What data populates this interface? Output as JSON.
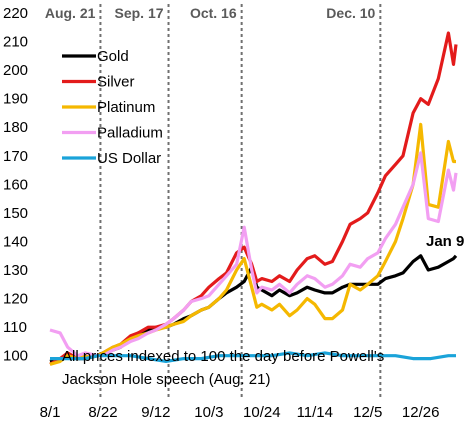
{
  "chart_data": {
    "type": "line",
    "title": "",
    "xlabel": "",
    "ylabel": "",
    "ylim": [
      95,
      220
    ],
    "y_ticks": [
      100,
      110,
      120,
      130,
      140,
      150,
      160,
      170,
      180,
      190,
      200,
      210,
      220
    ],
    "y_tick_labels": [
      "100",
      "110",
      "120",
      "130",
      "140",
      "150",
      "160",
      "170",
      "180",
      "190",
      "200",
      "210",
      "220"
    ],
    "x_range": [
      "2025-08-01",
      "2026-01-09"
    ],
    "x_ticks": [
      "2025-08-01",
      "2025-08-22",
      "2025-09-12",
      "2025-10-03",
      "2025-10-24",
      "2025-11-14",
      "2025-12-05",
      "2025-12-26"
    ],
    "x_tick_labels": [
      "8/1",
      "8/22",
      "9/12",
      "10/3",
      "10/24",
      "11/14",
      "12/5",
      "12/26"
    ],
    "grid": false,
    "legend_position": "top-left",
    "events": [
      {
        "date": "2025-08-21",
        "label": "Aug. 21"
      },
      {
        "date": "2025-09-17",
        "label": "Sep. 17"
      },
      {
        "date": "2025-10-16",
        "label": "Oct. 16"
      },
      {
        "date": "2025-12-10",
        "label": "Dec. 10"
      }
    ],
    "annotation": [
      "All prices indexed to 100 the day before Powell's",
      "Jackson Hole speech (Aug. 21)"
    ],
    "end_label": "Jan 9",
    "series": [
      {
        "name": "Gold",
        "color": "#000000",
        "points": [
          [
            "2025-08-01",
            98
          ],
          [
            "2025-08-05",
            99
          ],
          [
            "2025-08-08",
            100
          ],
          [
            "2025-08-12",
            99
          ],
          [
            "2025-08-15",
            99
          ],
          [
            "2025-08-20",
            100
          ],
          [
            "2025-08-22",
            101
          ],
          [
            "2025-08-26",
            102
          ],
          [
            "2025-08-29",
            103
          ],
          [
            "2025-09-02",
            106
          ],
          [
            "2025-09-05",
            108
          ],
          [
            "2025-09-09",
            109
          ],
          [
            "2025-09-12",
            110
          ],
          [
            "2025-09-16",
            110
          ],
          [
            "2025-09-19",
            111
          ],
          [
            "2025-09-23",
            113
          ],
          [
            "2025-09-26",
            114
          ],
          [
            "2025-09-30",
            116
          ],
          [
            "2025-10-03",
            117
          ],
          [
            "2025-10-07",
            120
          ],
          [
            "2025-10-10",
            122
          ],
          [
            "2025-10-14",
            124
          ],
          [
            "2025-10-17",
            126
          ],
          [
            "2025-10-20",
            131
          ],
          [
            "2025-10-22",
            124
          ],
          [
            "2025-10-24",
            123
          ],
          [
            "2025-10-28",
            121
          ],
          [
            "2025-10-31",
            123
          ],
          [
            "2025-11-04",
            121
          ],
          [
            "2025-11-07",
            122
          ],
          [
            "2025-11-11",
            124
          ],
          [
            "2025-11-14",
            123
          ],
          [
            "2025-11-18",
            122
          ],
          [
            "2025-11-21",
            122
          ],
          [
            "2025-11-25",
            124
          ],
          [
            "2025-11-28",
            125
          ],
          [
            "2025-12-02",
            125
          ],
          [
            "2025-12-05",
            125
          ],
          [
            "2025-12-09",
            125
          ],
          [
            "2025-12-12",
            127
          ],
          [
            "2025-12-16",
            128
          ],
          [
            "2025-12-19",
            129
          ],
          [
            "2025-12-23",
            133
          ],
          [
            "2025-12-26",
            135
          ],
          [
            "2025-12-29",
            130
          ],
          [
            "2026-01-02",
            131
          ],
          [
            "2026-01-06",
            133
          ],
          [
            "2026-01-08",
            134
          ],
          [
            "2026-01-09",
            135
          ]
        ]
      },
      {
        "name": "Silver",
        "color": "#e31b1b",
        "points": [
          [
            "2025-08-01",
            97
          ],
          [
            "2025-08-05",
            99
          ],
          [
            "2025-08-08",
            101
          ],
          [
            "2025-08-12",
            99
          ],
          [
            "2025-08-15",
            100
          ],
          [
            "2025-08-20",
            100
          ],
          [
            "2025-08-22",
            101
          ],
          [
            "2025-08-26",
            103
          ],
          [
            "2025-08-29",
            104
          ],
          [
            "2025-09-02",
            107
          ],
          [
            "2025-09-05",
            108
          ],
          [
            "2025-09-09",
            110
          ],
          [
            "2025-09-12",
            110
          ],
          [
            "2025-09-16",
            111
          ],
          [
            "2025-09-19",
            113
          ],
          [
            "2025-09-23",
            116
          ],
          [
            "2025-09-26",
            119
          ],
          [
            "2025-09-30",
            121
          ],
          [
            "2025-10-03",
            124
          ],
          [
            "2025-10-07",
            127
          ],
          [
            "2025-10-10",
            129
          ],
          [
            "2025-10-14",
            136
          ],
          [
            "2025-10-17",
            138
          ],
          [
            "2025-10-20",
            132
          ],
          [
            "2025-10-22",
            126
          ],
          [
            "2025-10-24",
            127
          ],
          [
            "2025-10-28",
            126
          ],
          [
            "2025-10-31",
            128
          ],
          [
            "2025-11-04",
            126
          ],
          [
            "2025-11-07",
            130
          ],
          [
            "2025-11-11",
            134
          ],
          [
            "2025-11-14",
            135
          ],
          [
            "2025-11-18",
            132
          ],
          [
            "2025-11-21",
            133
          ],
          [
            "2025-11-25",
            140
          ],
          [
            "2025-11-28",
            146
          ],
          [
            "2025-12-02",
            148
          ],
          [
            "2025-12-05",
            150
          ],
          [
            "2025-12-09",
            157
          ],
          [
            "2025-12-12",
            163
          ],
          [
            "2025-12-16",
            167
          ],
          [
            "2025-12-19",
            170
          ],
          [
            "2025-12-23",
            185
          ],
          [
            "2025-12-26",
            190
          ],
          [
            "2025-12-29",
            188
          ],
          [
            "2026-01-02",
            197
          ],
          [
            "2026-01-06",
            213
          ],
          [
            "2026-01-08",
            202
          ],
          [
            "2026-01-09",
            209
          ]
        ]
      },
      {
        "name": "Platinum",
        "color": "#f5b800",
        "points": [
          [
            "2025-08-01",
            97
          ],
          [
            "2025-08-05",
            98
          ],
          [
            "2025-08-08",
            100
          ],
          [
            "2025-08-12",
            99
          ],
          [
            "2025-08-15",
            100
          ],
          [
            "2025-08-20",
            100
          ],
          [
            "2025-08-22",
            101
          ],
          [
            "2025-08-26",
            103
          ],
          [
            "2025-08-29",
            104
          ],
          [
            "2025-09-02",
            106
          ],
          [
            "2025-09-05",
            107
          ],
          [
            "2025-09-09",
            108
          ],
          [
            "2025-09-12",
            109
          ],
          [
            "2025-09-16",
            110
          ],
          [
            "2025-09-19",
            111
          ],
          [
            "2025-09-23",
            112
          ],
          [
            "2025-09-26",
            114
          ],
          [
            "2025-09-30",
            116
          ],
          [
            "2025-10-03",
            117
          ],
          [
            "2025-10-07",
            120
          ],
          [
            "2025-10-10",
            123
          ],
          [
            "2025-10-14",
            130
          ],
          [
            "2025-10-17",
            134
          ],
          [
            "2025-10-20",
            124
          ],
          [
            "2025-10-22",
            117
          ],
          [
            "2025-10-24",
            118
          ],
          [
            "2025-10-28",
            116
          ],
          [
            "2025-10-31",
            118
          ],
          [
            "2025-11-04",
            114
          ],
          [
            "2025-11-07",
            116
          ],
          [
            "2025-11-11",
            120
          ],
          [
            "2025-11-14",
            118
          ],
          [
            "2025-11-18",
            113
          ],
          [
            "2025-11-21",
            113
          ],
          [
            "2025-11-25",
            116
          ],
          [
            "2025-11-28",
            125
          ],
          [
            "2025-12-02",
            123
          ],
          [
            "2025-12-05",
            125
          ],
          [
            "2025-12-09",
            128
          ],
          [
            "2025-12-12",
            133
          ],
          [
            "2025-12-16",
            140
          ],
          [
            "2025-12-19",
            148
          ],
          [
            "2025-12-23",
            160
          ],
          [
            "2025-12-26",
            181
          ],
          [
            "2025-12-29",
            153
          ],
          [
            "2026-01-02",
            152
          ],
          [
            "2026-01-06",
            175
          ],
          [
            "2026-01-08",
            168
          ],
          [
            "2026-01-09",
            168
          ]
        ]
      },
      {
        "name": "Palladium",
        "color": "#f29ff2",
        "points": [
          [
            "2025-08-01",
            109
          ],
          [
            "2025-08-05",
            108
          ],
          [
            "2025-08-08",
            103
          ],
          [
            "2025-08-12",
            100
          ],
          [
            "2025-08-15",
            101
          ],
          [
            "2025-08-20",
            100
          ],
          [
            "2025-08-22",
            100
          ],
          [
            "2025-08-26",
            102
          ],
          [
            "2025-08-29",
            103
          ],
          [
            "2025-09-02",
            105
          ],
          [
            "2025-09-05",
            106
          ],
          [
            "2025-09-09",
            108
          ],
          [
            "2025-09-12",
            109
          ],
          [
            "2025-09-16",
            111
          ],
          [
            "2025-09-19",
            113
          ],
          [
            "2025-09-23",
            116
          ],
          [
            "2025-09-26",
            119
          ],
          [
            "2025-09-30",
            120
          ],
          [
            "2025-10-03",
            121
          ],
          [
            "2025-10-07",
            125
          ],
          [
            "2025-10-10",
            128
          ],
          [
            "2025-10-14",
            132
          ],
          [
            "2025-10-17",
            145
          ],
          [
            "2025-10-20",
            130
          ],
          [
            "2025-10-22",
            122
          ],
          [
            "2025-10-24",
            124
          ],
          [
            "2025-10-28",
            123
          ],
          [
            "2025-10-31",
            125
          ],
          [
            "2025-11-04",
            122
          ],
          [
            "2025-11-07",
            125
          ],
          [
            "2025-11-11",
            128
          ],
          [
            "2025-11-14",
            127
          ],
          [
            "2025-11-18",
            124
          ],
          [
            "2025-11-21",
            125
          ],
          [
            "2025-11-25",
            128
          ],
          [
            "2025-11-28",
            132
          ],
          [
            "2025-12-02",
            131
          ],
          [
            "2025-12-05",
            134
          ],
          [
            "2025-12-09",
            136
          ],
          [
            "2025-12-12",
            141
          ],
          [
            "2025-12-16",
            146
          ],
          [
            "2025-12-19",
            152
          ],
          [
            "2025-12-23",
            160
          ],
          [
            "2025-12-26",
            171
          ],
          [
            "2025-12-29",
            148
          ],
          [
            "2026-01-02",
            147
          ],
          [
            "2026-01-06",
            165
          ],
          [
            "2026-01-08",
            158
          ],
          [
            "2026-01-09",
            164
          ]
        ]
      },
      {
        "name": "US Dollar",
        "color": "#1aa3d9",
        "points": [
          [
            "2025-08-01",
            99
          ],
          [
            "2025-08-08",
            99
          ],
          [
            "2025-08-15",
            99
          ],
          [
            "2025-08-20",
            100
          ],
          [
            "2025-08-26",
            100
          ],
          [
            "2025-09-02",
            100
          ],
          [
            "2025-09-09",
            99
          ],
          [
            "2025-09-16",
            98
          ],
          [
            "2025-09-23",
            99
          ],
          [
            "2025-09-30",
            99
          ],
          [
            "2025-10-07",
            100
          ],
          [
            "2025-10-14",
            100
          ],
          [
            "2025-10-21",
            100
          ],
          [
            "2025-10-28",
            100
          ],
          [
            "2025-11-04",
            101
          ],
          [
            "2025-11-11",
            100
          ],
          [
            "2025-11-18",
            101
          ],
          [
            "2025-11-25",
            100
          ],
          [
            "2025-12-02",
            100
          ],
          [
            "2025-12-09",
            100
          ],
          [
            "2025-12-16",
            100
          ],
          [
            "2025-12-23",
            99
          ],
          [
            "2025-12-30",
            99
          ],
          [
            "2026-01-06",
            100
          ],
          [
            "2026-01-09",
            100
          ]
        ]
      }
    ]
  }
}
